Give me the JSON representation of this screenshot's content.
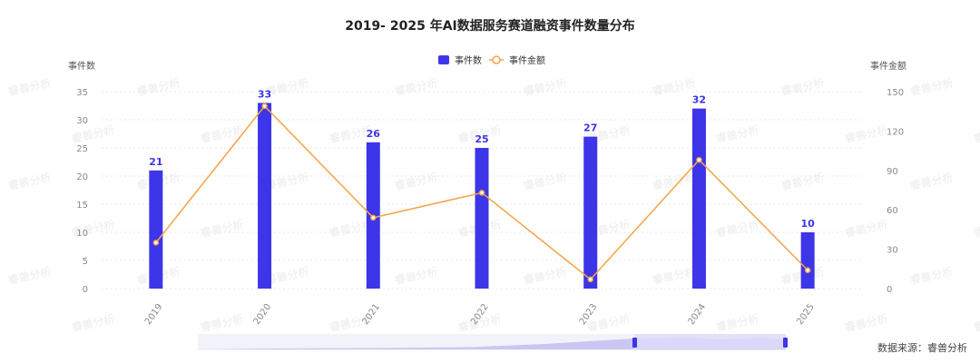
{
  "chart_data": {
    "type": "bar",
    "title": "2019- 2025 年AI数据服务赛道融资事件数量分布",
    "categories": [
      "2019",
      "2020",
      "2021",
      "2022",
      "2023",
      "2024",
      "2025"
    ],
    "series": [
      {
        "name": "事件数",
        "type": "bar",
        "axis": "left",
        "color": "#3d35e8",
        "values": [
          21,
          33,
          26,
          25,
          27,
          32,
          10
        ]
      },
      {
        "name": "事件金额",
        "type": "line",
        "axis": "right",
        "color": "#f5a347",
        "values": [
          35,
          139,
          54,
          73,
          7,
          98,
          14
        ]
      }
    ],
    "ylabel": "事件数",
    "ylabel_right": "事件金额",
    "ylim": [
      0,
      35
    ],
    "ylim_right": [
      0,
      150
    ],
    "yticks": [
      0,
      5,
      10,
      15,
      20,
      25,
      30,
      35
    ],
    "yticks_right": [
      0,
      30,
      60,
      90,
      120,
      150
    ],
    "legend_position": "top-center",
    "grid": true,
    "data_labels": true
  },
  "watermark": "睿兽分析",
  "source": "数据来源：睿兽分析"
}
